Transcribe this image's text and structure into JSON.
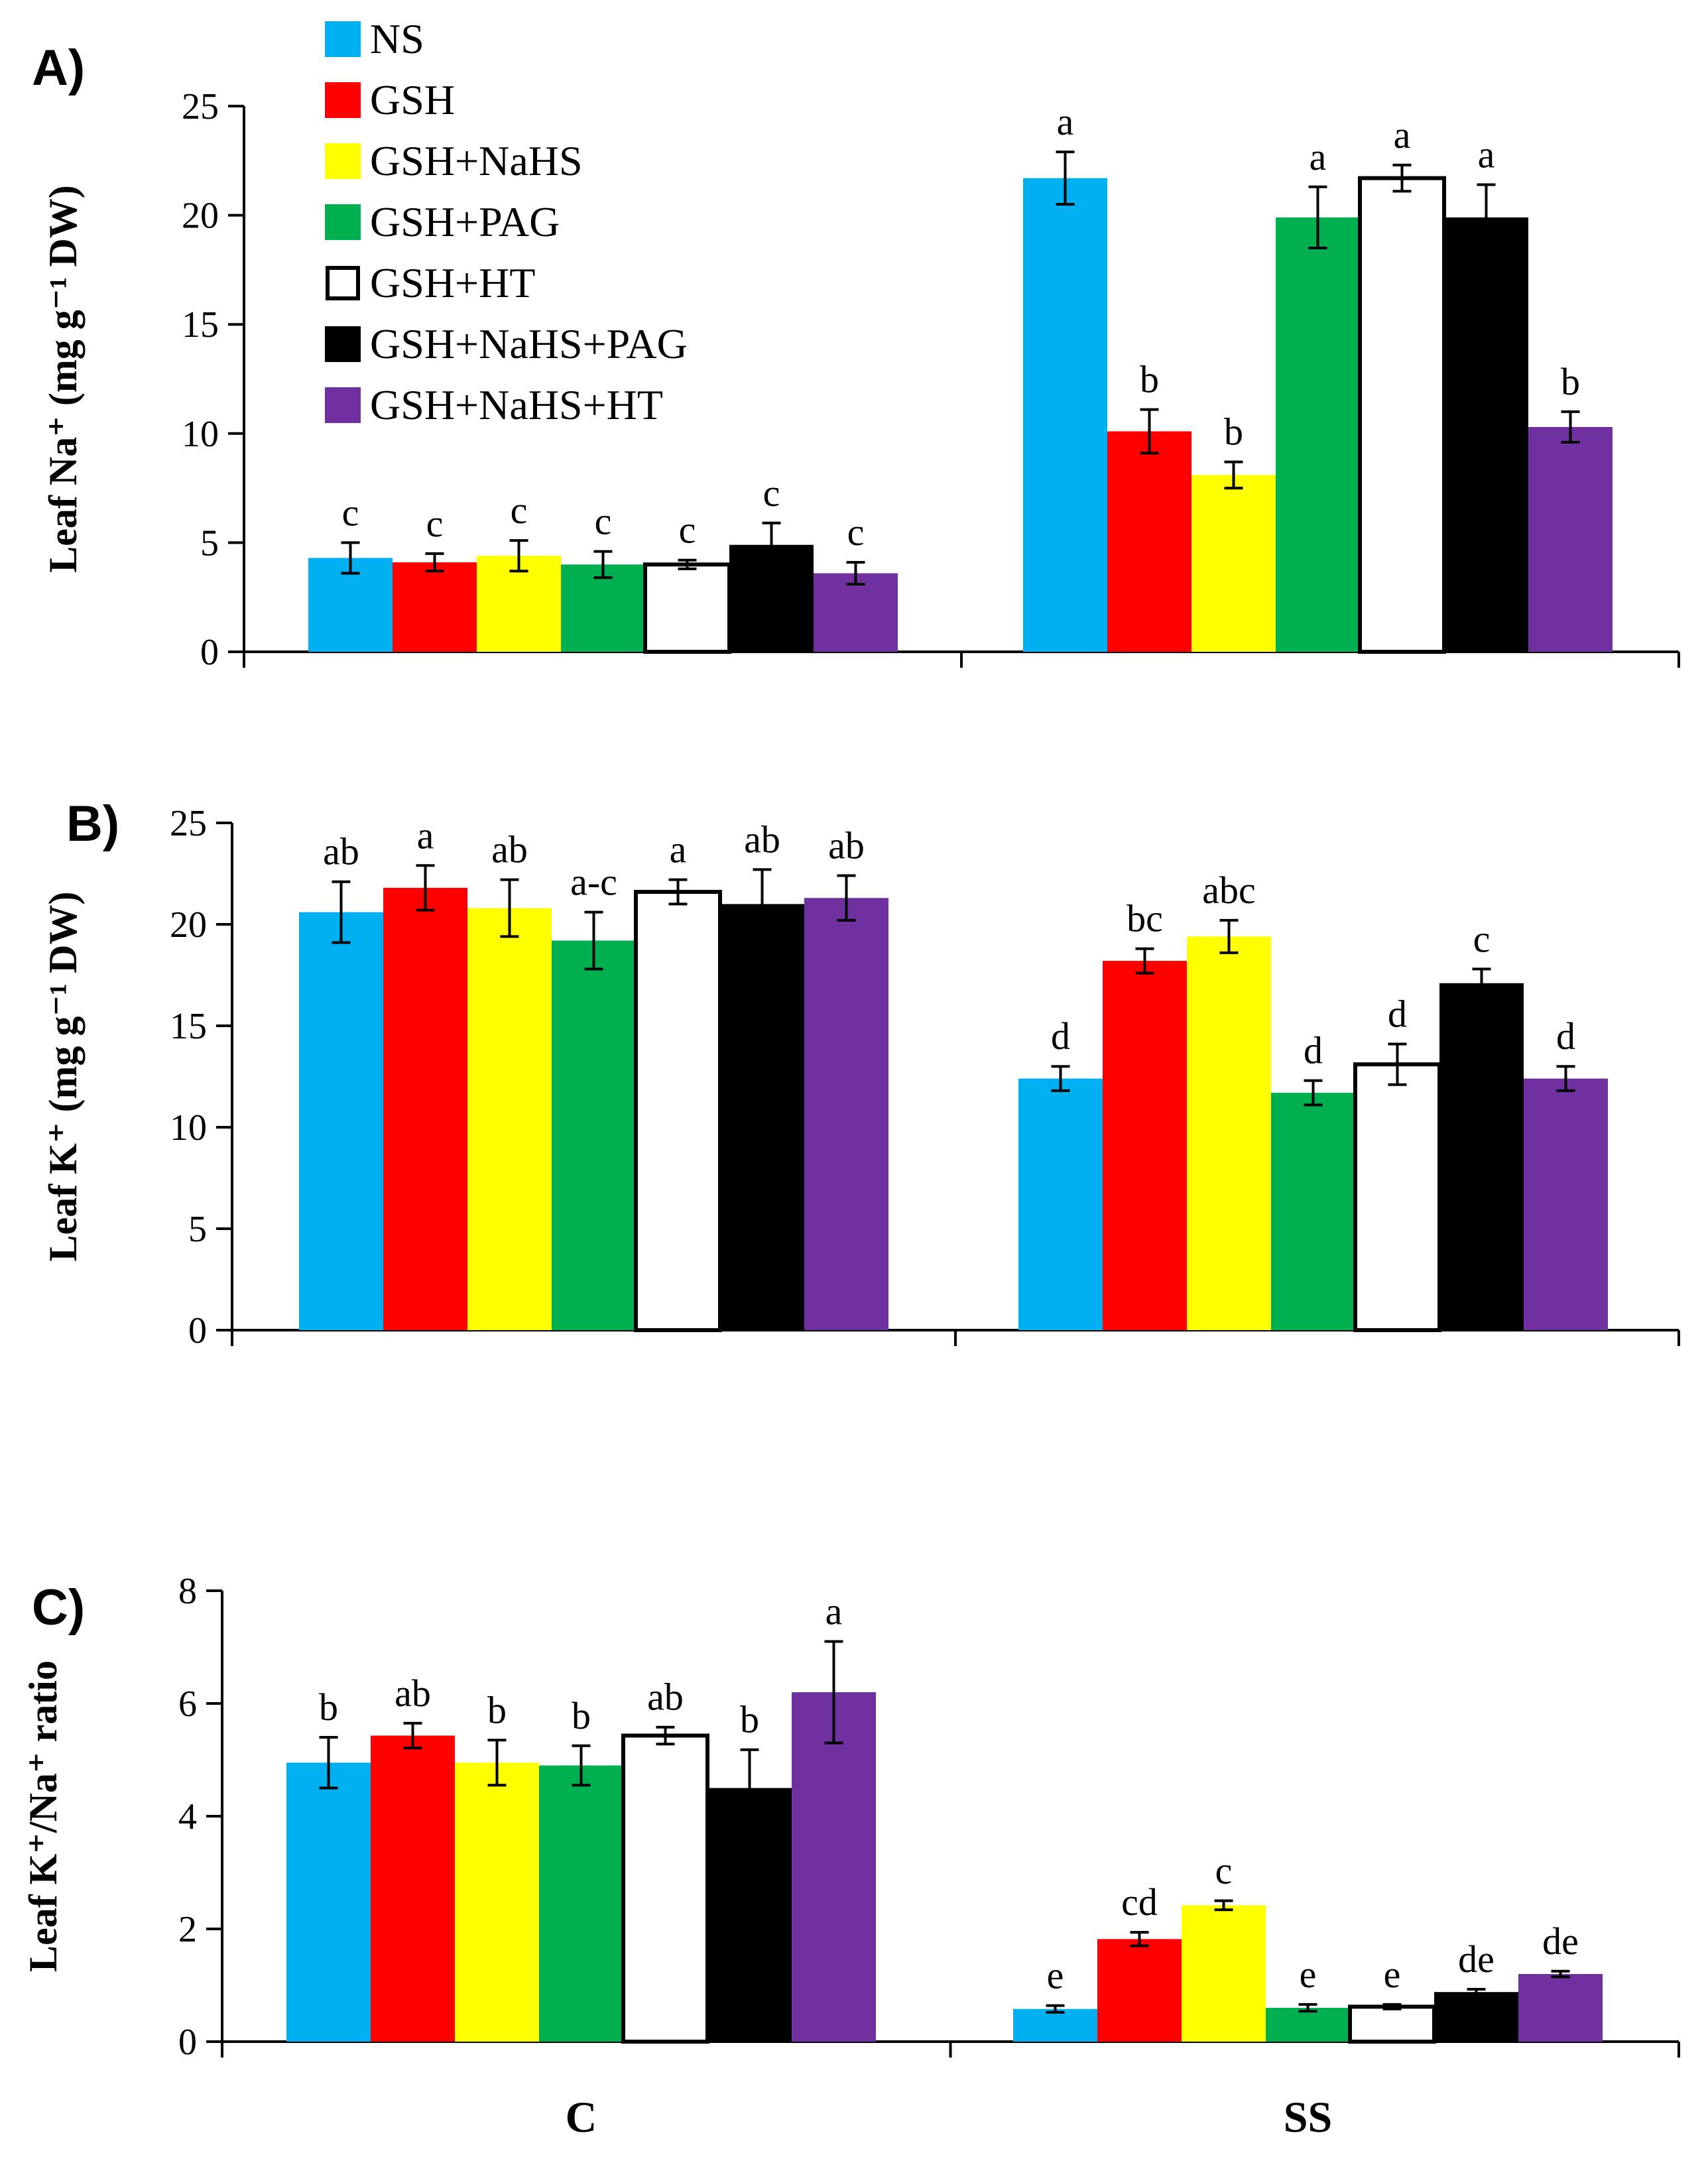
{
  "legend": {
    "entries": [
      {
        "name": "NS",
        "color": "#00b0f0"
      },
      {
        "name": "GSH",
        "color": "#ff0000"
      },
      {
        "name": "GSH+NaHS",
        "color": "#ffff00"
      },
      {
        "name": "GSH+PAG",
        "color": "#00b050"
      },
      {
        "name": "GSH+HT",
        "color": "#ffffff"
      },
      {
        "name": "GSH+NaHS+PAG",
        "color": "#000000"
      },
      {
        "name": "GSH+NaHS+HT",
        "color": "#7030a0"
      }
    ]
  },
  "chart_data": [
    {
      "type": "bar",
      "panel": "A)",
      "ylabel": "Leaf Na⁺ (mg g⁻¹ DW)",
      "categories": [
        "C",
        "SS"
      ],
      "ylim": [
        0,
        25
      ],
      "yticks": [
        "0",
        "5",
        "10",
        "15",
        "20",
        "25"
      ],
      "series": [
        {
          "name": "NS",
          "values": [
            4.3,
            21.7
          ],
          "errors": [
            0.7,
            1.2
          ],
          "letters": [
            "c",
            "a"
          ]
        },
        {
          "name": "GSH",
          "values": [
            4.1,
            10.1
          ],
          "errors": [
            0.4,
            1.0
          ],
          "letters": [
            "c",
            "b"
          ]
        },
        {
          "name": "GSH+NaHS",
          "values": [
            4.4,
            8.1
          ],
          "errors": [
            0.7,
            0.6
          ],
          "letters": [
            "c",
            "b"
          ]
        },
        {
          "name": "GSH+PAG",
          "values": [
            4.0,
            19.9
          ],
          "errors": [
            0.6,
            1.4
          ],
          "letters": [
            "c",
            "a"
          ]
        },
        {
          "name": "GSH+HT",
          "values": [
            4.0,
            21.7
          ],
          "errors": [
            0.2,
            0.6
          ],
          "letters": [
            "c",
            "a"
          ]
        },
        {
          "name": "GSH+NaHS+PAG",
          "values": [
            4.9,
            19.9
          ],
          "errors": [
            1.0,
            1.5
          ],
          "letters": [
            "c",
            "a"
          ]
        },
        {
          "name": "GSH+NaHS+HT",
          "values": [
            3.6,
            10.3
          ],
          "errors": [
            0.5,
            0.7
          ],
          "letters": [
            "c",
            "b"
          ]
        }
      ]
    },
    {
      "type": "bar",
      "panel": "B)",
      "ylabel": "Leaf K⁺ (mg g⁻¹ DW)",
      "categories": [
        "C",
        "SS"
      ],
      "ylim": [
        0,
        25
      ],
      "yticks": [
        "0",
        "5",
        "10",
        "15",
        "20",
        "25"
      ],
      "series": [
        {
          "name": "NS",
          "values": [
            20.6,
            12.4
          ],
          "errors": [
            1.5,
            0.6
          ],
          "letters": [
            "ab",
            "d"
          ]
        },
        {
          "name": "GSH",
          "values": [
            21.8,
            18.2
          ],
          "errors": [
            1.1,
            0.6
          ],
          "letters": [
            "a",
            "bc"
          ]
        },
        {
          "name": "GSH+NaHS",
          "values": [
            20.8,
            19.4
          ],
          "errors": [
            1.4,
            0.8
          ],
          "letters": [
            "ab",
            "abc"
          ]
        },
        {
          "name": "GSH+PAG",
          "values": [
            19.2,
            11.7
          ],
          "errors": [
            1.4,
            0.6
          ],
          "letters": [
            "a-c",
            "d"
          ]
        },
        {
          "name": "GSH+HT",
          "values": [
            21.6,
            13.1
          ],
          "errors": [
            0.6,
            1.0
          ],
          "letters": [
            "a",
            "d"
          ]
        },
        {
          "name": "GSH+NaHS+PAG",
          "values": [
            21.0,
            17.1
          ],
          "errors": [
            1.7,
            0.7
          ],
          "letters": [
            "ab",
            "c"
          ]
        },
        {
          "name": "GSH+NaHS+HT",
          "values": [
            21.3,
            12.4
          ],
          "errors": [
            1.1,
            0.6
          ],
          "letters": [
            "ab",
            "d"
          ]
        }
      ]
    },
    {
      "type": "bar",
      "panel": "C)",
      "ylabel": "Leaf K⁺/Na⁺ ratio",
      "categories": [
        "C",
        "SS"
      ],
      "ylim": [
        0,
        8
      ],
      "yticks": [
        "0",
        "2",
        "4",
        "6",
        "8"
      ],
      "series": [
        {
          "name": "NS",
          "values": [
            4.95,
            0.58
          ],
          "errors": [
            0.45,
            0.06
          ],
          "letters": [
            "b",
            "e"
          ]
        },
        {
          "name": "GSH",
          "values": [
            5.43,
            1.82
          ],
          "errors": [
            0.22,
            0.12
          ],
          "letters": [
            "ab",
            "cd"
          ]
        },
        {
          "name": "GSH+NaHS",
          "values": [
            4.95,
            2.42
          ],
          "errors": [
            0.4,
            0.08
          ],
          "letters": [
            "b",
            "c"
          ]
        },
        {
          "name": "GSH+PAG",
          "values": [
            4.9,
            0.6
          ],
          "errors": [
            0.35,
            0.06
          ],
          "letters": [
            "b",
            "e"
          ]
        },
        {
          "name": "GSH+HT",
          "values": [
            5.43,
            0.62
          ],
          "errors": [
            0.15,
            0.04
          ],
          "letters": [
            "ab",
            "e"
          ]
        },
        {
          "name": "GSH+NaHS+PAG",
          "values": [
            4.5,
            0.88
          ],
          "errors": [
            0.68,
            0.05
          ],
          "letters": [
            "b",
            "de"
          ]
        },
        {
          "name": "GSH+NaHS+HT",
          "values": [
            6.2,
            1.2
          ],
          "errors": [
            0.9,
            0.05
          ],
          "letters": [
            "a",
            "de"
          ]
        }
      ]
    }
  ]
}
